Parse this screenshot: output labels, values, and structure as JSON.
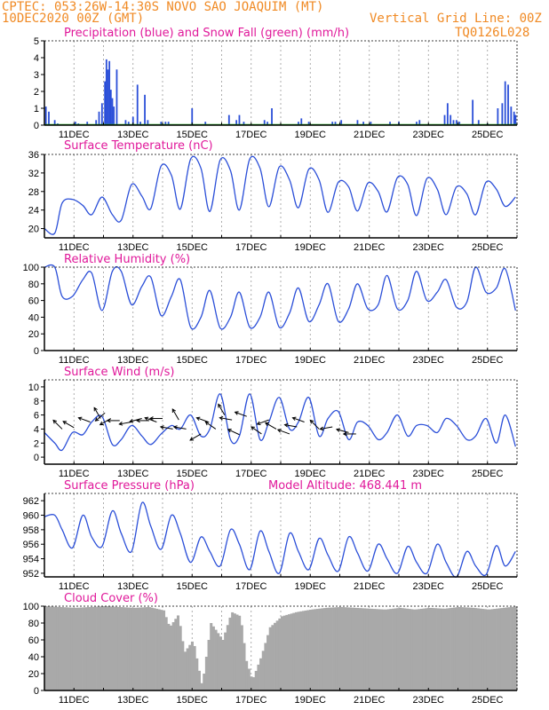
{
  "header": {
    "line1": "CPTEC:   053:26W-14:30S   NOVO SAO JOAQUIM (MT)",
    "line2_left": "10DEC2020 00Z (GMT)",
    "line2_right": "Vertical Grid Line: 00Z",
    "line3_right": "TQ0126L028"
  },
  "model_altitude": "Model Altitude: 468.441 m",
  "colors": {
    "line": "#2b4fd8",
    "snow": "#16a816",
    "cloud": "#a9a9a9",
    "title": "#e0189a",
    "header": "#f08a24"
  },
  "date_labels": [
    "11DEC",
    "13DEC",
    "15DEC",
    "17DEC",
    "19DEC",
    "21DEC",
    "23DEC",
    "25DEC"
  ],
  "chart_data": [
    {
      "type": "bar",
      "title": "Precipitation (blue) and Snow Fall (green) (mm/h)",
      "ylim": [
        0,
        5
      ],
      "yticks": [
        "0",
        "1",
        "2",
        "3",
        "4",
        "5"
      ],
      "x_start": "2020-12-10T00Z",
      "x_end": "2020-12-25T00Z",
      "series": [
        {
          "name": "Precipitation",
          "x_days": [
            0.05,
            0.15,
            0.35,
            0.45,
            1.05,
            1.15,
            1.45,
            1.75,
            1.85,
            1.95,
            2.05,
            2.1,
            2.15,
            2.2,
            2.25,
            2.3,
            2.35,
            2.45,
            2.75,
            2.85,
            3.0,
            3.15,
            3.25,
            3.4,
            3.5,
            3.95,
            4.1,
            4.2,
            5.0,
            5.45,
            6.25,
            6.5,
            6.6,
            6.75,
            7.45,
            7.55,
            7.7,
            8.6,
            8.7,
            8.95,
            9.75,
            9.85,
            10.05,
            10.6,
            10.8,
            11.05,
            11.7,
            12.0,
            12.6,
            12.7,
            13.55,
            13.65,
            13.75,
            13.85,
            13.95,
            14.05,
            14.5,
            14.7,
            15.0,
            15.35,
            15.5,
            15.6,
            15.7,
            15.8,
            15.9,
            15.95
          ],
          "values": [
            1.1,
            0.8,
            0.3,
            0.1,
            0.2,
            0.1,
            0.2,
            0.3,
            0.8,
            1.3,
            2.6,
            3.9,
            3.3,
            3.8,
            2.1,
            1.6,
            1.1,
            3.3,
            0.3,
            0.2,
            0.5,
            2.4,
            0.2,
            1.8,
            0.3,
            0.2,
            0.2,
            0.2,
            1.0,
            0.2,
            0.6,
            0.3,
            0.6,
            0.2,
            0.3,
            0.2,
            1.0,
            0.2,
            0.4,
            0.2,
            0.2,
            0.2,
            0.3,
            0.3,
            0.2,
            0.2,
            0.2,
            0.2,
            0.2,
            0.3,
            0.6,
            1.3,
            0.6,
            0.3,
            0.3,
            0.2,
            1.5,
            0.3,
            0.1,
            1.0,
            1.3,
            2.6,
            2.4,
            1.1,
            0.8,
            0.6
          ]
        },
        {
          "name": "Snow Fall",
          "values": [
            0
          ]
        }
      ],
      "grid": "vertical dashed at 00Z"
    },
    {
      "type": "line",
      "title": "Surface Temperature (nC)",
      "ylim": [
        18,
        36
      ],
      "yticks": [
        "20",
        "24",
        "28",
        "32",
        "36"
      ],
      "x_days": [
        0,
        0.35,
        0.6,
        0.95,
        1.3,
        1.6,
        1.95,
        2.3,
        2.6,
        2.95,
        3.3,
        3.6,
        3.95,
        4.3,
        4.6,
        4.95,
        5.3,
        5.6,
        5.95,
        6.3,
        6.6,
        6.95,
        7.3,
        7.6,
        7.95,
        8.3,
        8.6,
        8.95,
        9.3,
        9.6,
        9.95,
        10.3,
        10.6,
        10.95,
        11.3,
        11.6,
        11.95,
        12.3,
        12.6,
        12.95,
        13.3,
        13.6,
        13.95,
        14.3,
        14.6,
        14.95,
        15.3,
        15.6,
        15.95
      ],
      "y": [
        20.0,
        19.0,
        25.5,
        26.3,
        25.0,
        23.0,
        26.8,
        23.0,
        21.8,
        29.5,
        27.0,
        24.3,
        33.5,
        31.5,
        24.2,
        35.0,
        33.0,
        23.7,
        34.8,
        32.5,
        24.0,
        35.0,
        33.0,
        24.7,
        33.3,
        30.5,
        24.5,
        32.8,
        30.5,
        23.5,
        30.0,
        29.0,
        23.8,
        29.8,
        28.0,
        23.6,
        31.0,
        29.5,
        22.8,
        30.8,
        28.5,
        23.0,
        29.0,
        27.5,
        23.0,
        30.0,
        28.5,
        24.8,
        26.8
      ]
    },
    {
      "type": "line",
      "title": "Relative Humidity (%)",
      "ylim": [
        0,
        100
      ],
      "yticks": [
        "0",
        "20",
        "40",
        "60",
        "80",
        "100"
      ],
      "x_days": [
        0,
        0.35,
        0.6,
        0.95,
        1.3,
        1.6,
        1.95,
        2.3,
        2.6,
        2.95,
        3.3,
        3.6,
        3.95,
        4.3,
        4.6,
        4.95,
        5.3,
        5.6,
        5.95,
        6.3,
        6.6,
        6.95,
        7.3,
        7.6,
        7.95,
        8.3,
        8.6,
        8.95,
        9.3,
        9.6,
        9.95,
        10.3,
        10.6,
        10.95,
        11.3,
        11.6,
        11.95,
        12.3,
        12.6,
        12.95,
        13.3,
        13.6,
        13.95,
        14.3,
        14.6,
        14.95,
        15.3,
        15.6,
        15.95
      ],
      "y": [
        100,
        100,
        65,
        65,
        85,
        93,
        48,
        95,
        95,
        55,
        77,
        88,
        42,
        65,
        85,
        28,
        40,
        72,
        27,
        40,
        70,
        28,
        40,
        70,
        28,
        45,
        75,
        35,
        55,
        80,
        35,
        50,
        80,
        50,
        55,
        90,
        50,
        60,
        95,
        60,
        70,
        85,
        52,
        58,
        100,
        70,
        75,
        98,
        48
      ]
    },
    {
      "type": "line",
      "title": "Surface Wind (m/s)",
      "ylim": [
        -1,
        11
      ],
      "yticks": [
        "0",
        "2",
        "4",
        "6",
        "8",
        "10"
      ],
      "x_days": [
        0,
        0.35,
        0.6,
        0.95,
        1.3,
        1.6,
        1.95,
        2.3,
        2.6,
        2.95,
        3.3,
        3.6,
        3.95,
        4.3,
        4.6,
        4.95,
        5.3,
        5.6,
        5.95,
        6.3,
        6.6,
        6.95,
        7.3,
        7.6,
        7.95,
        8.3,
        8.6,
        8.95,
        9.3,
        9.6,
        9.95,
        10.3,
        10.6,
        10.95,
        11.3,
        11.6,
        11.95,
        12.3,
        12.6,
        12.95,
        13.3,
        13.6,
        13.95,
        14.3,
        14.6,
        14.95,
        15.3,
        15.6,
        15.95
      ],
      "y": [
        3.5,
        2.0,
        1.0,
        3.5,
        3.2,
        5.0,
        5.8,
        1.8,
        2.5,
        4.5,
        3.0,
        1.8,
        3.3,
        4.5,
        4.0,
        6.0,
        3.0,
        4.0,
        9.0,
        2.5,
        3.0,
        9.0,
        2.5,
        5.0,
        8.5,
        4.0,
        5.0,
        8.5,
        3.0,
        5.5,
        6.5,
        2.5,
        5.0,
        4.5,
        2.5,
        3.5,
        6.0,
        3.0,
        4.5,
        4.5,
        3.5,
        5.5,
        4.5,
        2.5,
        3.0,
        5.5,
        2.0,
        6.0,
        1.5
      ]
    },
    {
      "type": "line",
      "title": "Surface Pressure (hPa)",
      "ylim": [
        951.5,
        963
      ],
      "yticks": [
        "952",
        "954",
        "956",
        "958",
        "960",
        "962"
      ],
      "x_days": [
        0,
        0.35,
        0.6,
        0.95,
        1.3,
        1.6,
        1.95,
        2.3,
        2.6,
        2.95,
        3.3,
        3.6,
        3.95,
        4.3,
        4.6,
        4.95,
        5.3,
        5.6,
        5.95,
        6.3,
        6.6,
        6.95,
        7.3,
        7.6,
        7.95,
        8.3,
        8.6,
        8.95,
        9.3,
        9.6,
        9.95,
        10.3,
        10.6,
        10.95,
        11.3,
        11.6,
        11.95,
        12.3,
        12.6,
        12.95,
        13.3,
        13.6,
        13.95,
        14.3,
        14.6,
        14.95,
        15.3,
        15.6,
        15.95
      ],
      "y": [
        959.8,
        960.0,
        958.0,
        955.5,
        960.0,
        957.0,
        955.7,
        960.6,
        957.5,
        955.0,
        961.7,
        958.5,
        955.3,
        960.0,
        957.5,
        953.5,
        957.0,
        955.0,
        953.0,
        958.0,
        956.0,
        952.5,
        957.8,
        955.0,
        952.0,
        957.5,
        955.0,
        952.5,
        956.8,
        954.5,
        952.3,
        957.0,
        954.8,
        952.3,
        956.0,
        954.0,
        952.0,
        955.7,
        953.5,
        952.0,
        956.0,
        953.5,
        951.5,
        955.0,
        953.0,
        951.8,
        955.8,
        953.0,
        955.0
      ]
    },
    {
      "type": "area",
      "title": "Cloud Cover (%)",
      "ylim": [
        0,
        100
      ],
      "yticks": [
        "0",
        "20",
        "40",
        "60",
        "80",
        "100"
      ],
      "x_days": [
        0,
        0.5,
        1.0,
        1.5,
        2.0,
        2.5,
        3.0,
        3.5,
        4.0,
        4.2,
        4.5,
        4.7,
        5.0,
        5.3,
        5.6,
        6.0,
        6.3,
        6.6,
        6.8,
        7.0,
        7.3,
        7.6,
        8.0,
        8.5,
        9.0,
        9.5,
        10.0,
        10.5,
        11.0,
        11.5,
        12.0,
        12.5,
        13.0,
        13.5,
        14.0,
        14.5,
        15.0,
        15.5,
        16.0
      ],
      "y": [
        100,
        99,
        98,
        99,
        100,
        99,
        98,
        99,
        95,
        75,
        90,
        45,
        60,
        5,
        80,
        60,
        93,
        88,
        35,
        12,
        40,
        75,
        88,
        93,
        96,
        98,
        99,
        98,
        97,
        96,
        98,
        96,
        98,
        97,
        99,
        98,
        96,
        98,
        100
      ]
    }
  ],
  "panel_titles": {
    "precip": "Precipitation (blue) and Snow Fall (green) (mm/h)",
    "temp": "Surface Temperature (nC)",
    "rh": "Relative Humidity (%)",
    "wind": "Surface Wind (m/s)",
    "pres": "Surface Pressure (hPa)",
    "cloud": "Cloud Cover (%)"
  },
  "wind_arrows": {
    "angles_deg": [
      225,
      210,
      200,
      240,
      140,
      150,
      180,
      170,
      165,
      180,
      200,
      180,
      190,
      240,
      190,
      150,
      200,
      215,
      240,
      190,
      205,
      200,
      215,
      160,
      210,
      200,
      190,
      200,
      225,
      170,
      195,
      180
    ],
    "x_days": [
      0.6,
      1.0,
      1.55,
      1.9,
      2.05,
      2.25,
      2.55,
      2.95,
      3.3,
      3.55,
      3.8,
      4.0,
      4.35,
      4.55,
      4.8,
      5.3,
      5.55,
      5.8,
      6.1,
      6.35,
      6.6,
      6.85,
      7.35,
      7.6,
      7.85,
      8.3,
      8.55,
      8.8,
      9.3,
      9.75,
      10.3,
      10.55
    ],
    "y": [
      4.0,
      4.2,
      5.0,
      5.5,
      6.3,
      5.5,
      5.2,
      5.0,
      5.5,
      5.2,
      5.0,
      5.5,
      4.0,
      5.3,
      4.0,
      3.3,
      5.0,
      4.0,
      6.0,
      5.3,
      3.2,
      5.8,
      3.3,
      5.3,
      4.0,
      3.3,
      4.3,
      5.0,
      4.0,
      4.3,
      3.5,
      3.3
    ]
  }
}
